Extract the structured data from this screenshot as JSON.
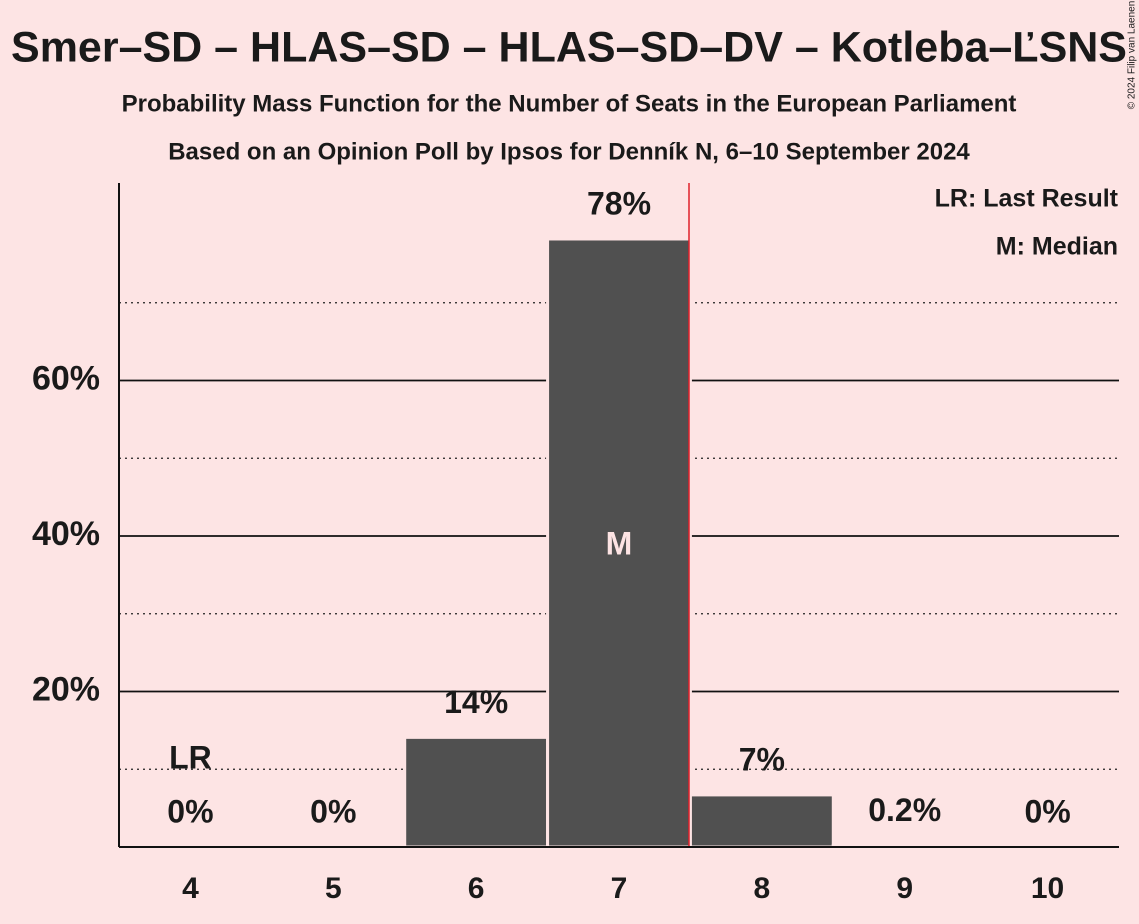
{
  "chart_data": {
    "type": "bar",
    "title": "Smer–SD – HLAS–SD – HLAS–SD–DV – Kotleba–ĽSNS",
    "subtitle": "Probability Mass Function for the Number of Seats in the European Parliament",
    "caption": "Based on an Opinion Poll by Ipsos for Denník N, 6–10 September 2024",
    "copyright": "© 2024 Filip van Laenen",
    "categories": [
      "4",
      "5",
      "6",
      "7",
      "8",
      "9",
      "10"
    ],
    "values": [
      0,
      0,
      14.1,
      78.2,
      6.7,
      0.2,
      0
    ],
    "value_labels": [
      "0%",
      "0%",
      "14%",
      "78%",
      "7%",
      "0.2%",
      "0%"
    ],
    "color": "#505050",
    "ylim": [
      0,
      85.4
    ],
    "yticks": [
      {
        "value": 20,
        "label": "20%"
      },
      {
        "value": 40,
        "label": "40%"
      },
      {
        "value": 60,
        "label": "60%"
      }
    ],
    "minor_yticks": [
      10,
      30,
      50,
      70
    ],
    "grid": true,
    "last_result": {
      "category": "4",
      "label": "LR"
    },
    "median": {
      "category": "7",
      "label": "M"
    },
    "legend": [
      "LR: Last Result",
      "M: Median"
    ]
  }
}
